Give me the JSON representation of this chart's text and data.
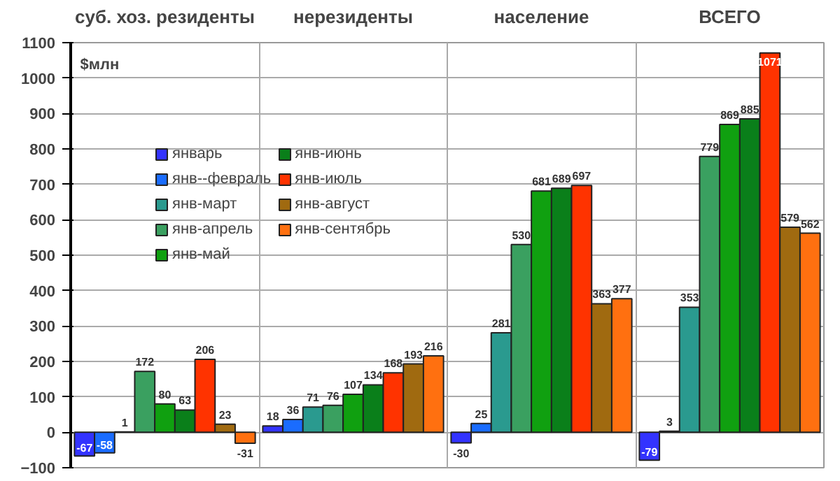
{
  "chart_data": {
    "type": "bar",
    "ylabel": "$млн",
    "categories": [
      "суб. хоз. резиденты",
      "нерезиденты",
      "население",
      "ВСЕГО"
    ],
    "series": [
      {
        "name": "январь",
        "color": "#3333ff",
        "values": [
          -67,
          18,
          -30,
          -79
        ]
      },
      {
        "name": "янв--февраль",
        "color": "#1a6cff",
        "values": [
          -58,
          36,
          25,
          3
        ]
      },
      {
        "name": "янв-март",
        "color": "#2a9a8f",
        "values": [
          1,
          71,
          281,
          353
        ]
      },
      {
        "name": "янв-апрель",
        "color": "#3aa060",
        "values": [
          172,
          76,
          530,
          779
        ]
      },
      {
        "name": "янв-май",
        "color": "#10a010",
        "values": [
          80,
          107,
          681,
          869
        ]
      },
      {
        "name": "янв-июнь",
        "color": "#0a7f1a",
        "values": [
          63,
          134,
          689,
          885
        ]
      },
      {
        "name": "янв-июль",
        "color": "#ff3300",
        "values": [
          206,
          168,
          697,
          1071
        ]
      },
      {
        "name": "янв-август",
        "color": "#a06a10",
        "values": [
          23,
          193,
          363,
          579
        ]
      },
      {
        "name": "янв-сентябрь",
        "color": "#ff7010",
        "values": [
          -31,
          216,
          377,
          562
        ]
      }
    ],
    "ylim": [
      -100,
      1100
    ],
    "yticks": [
      -100,
      0,
      100,
      200,
      300,
      400,
      500,
      600,
      700,
      800,
      900,
      1000,
      1100
    ],
    "grid": true,
    "legend": "top left",
    "data_labels": true
  }
}
